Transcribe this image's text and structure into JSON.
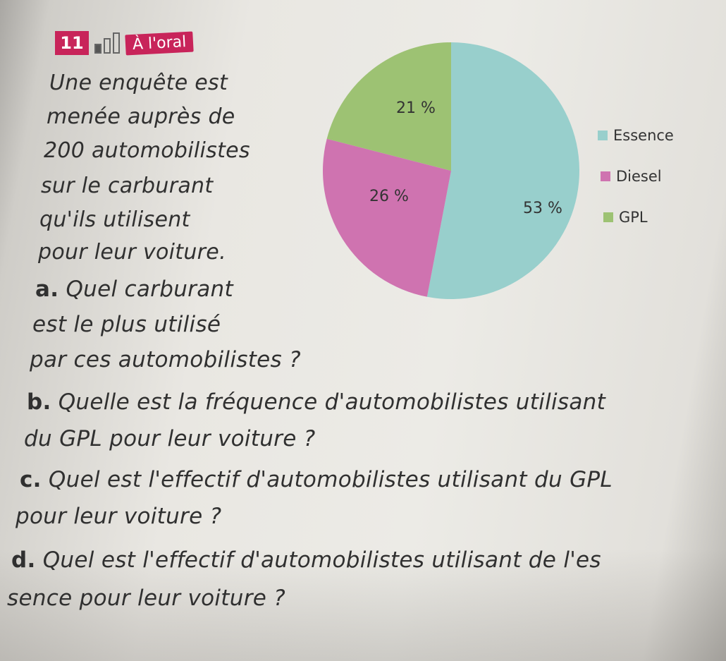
{
  "exercise": {
    "number": "11",
    "tag": "À l'oral",
    "intro_lines": [
      "Une enquête est",
      "menée auprès de",
      "200 automobilistes",
      "sur le carburant",
      "qu'ils utilisent",
      "pour leur voiture."
    ],
    "questions": [
      {
        "letter": "a.",
        "lines": [
          "Quel carburant",
          "est le plus utilisé",
          "par ces automobilistes ?"
        ]
      },
      {
        "letter": "b.",
        "lines": [
          "Quelle est la fréquence d'automobilistes utilisant",
          "du GPL pour leur voiture ?"
        ]
      },
      {
        "letter": "c.",
        "lines": [
          "Quel est l'effectif d'automobilistes utilisant du GPL",
          "pour leur voiture ?"
        ]
      },
      {
        "letter": "d.",
        "lines": [
          "Quel est l'effectif d'automobilistes utilisant de l'es",
          "sence pour leur voiture ?"
        ]
      }
    ]
  },
  "chart_data": {
    "type": "pie",
    "slices": [
      {
        "label": "Essence",
        "value": 53,
        "display": "53 %",
        "color": "#98cfcc"
      },
      {
        "label": "Diesel",
        "value": 26,
        "display": "26 %",
        "color": "#cf73b0"
      },
      {
        "label": "GPL",
        "value": 21,
        "display": "21 %",
        "color": "#9dc273"
      }
    ],
    "legend_placement": "right"
  }
}
